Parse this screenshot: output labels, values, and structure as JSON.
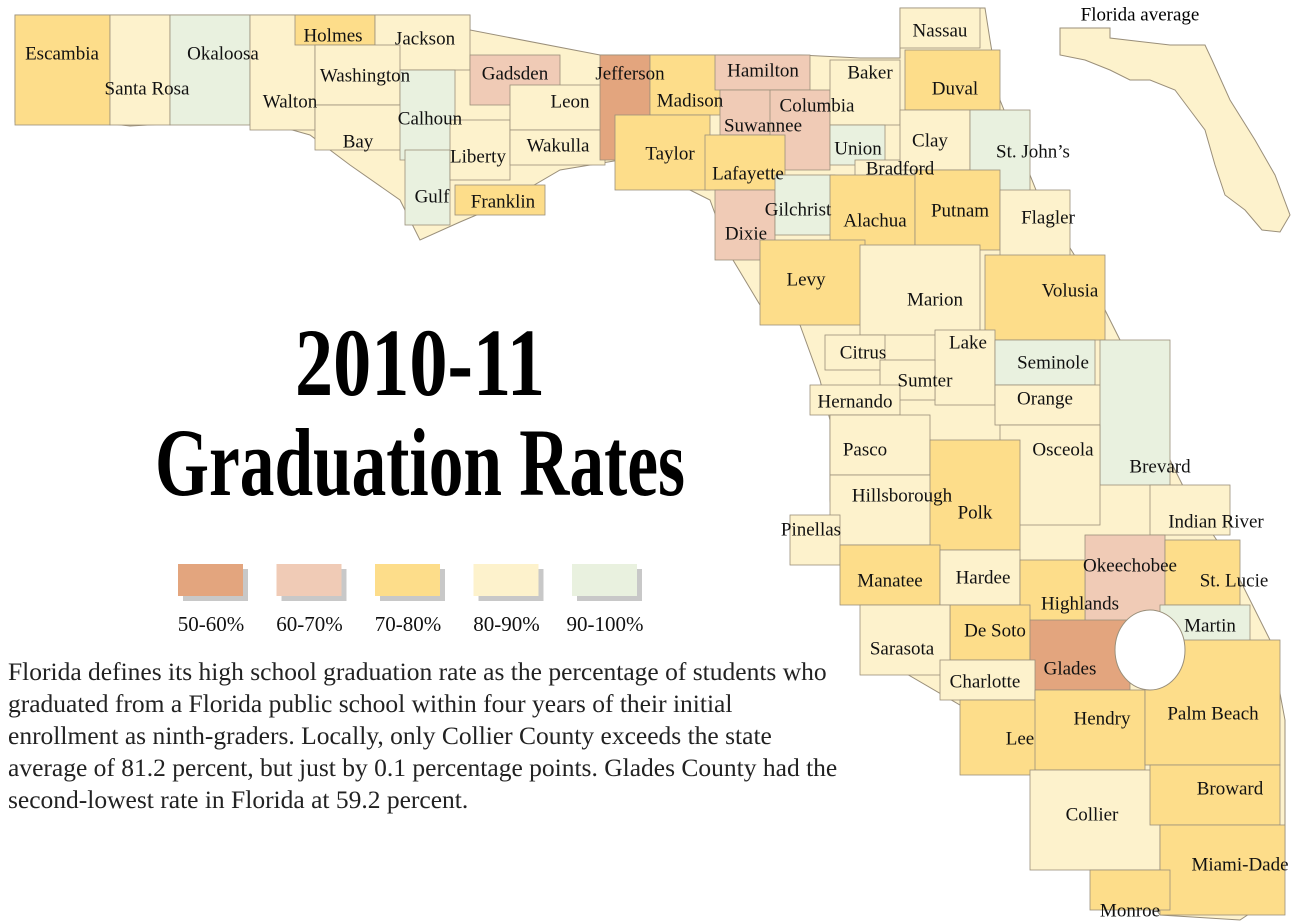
{
  "title": {
    "line1": "2010-11",
    "line2": "Graduation Rates"
  },
  "inset_label": "Florida average",
  "inset_color": "#fdf2cc",
  "legend": [
    {
      "label": "50-60%",
      "color": "#e3a57e"
    },
    {
      "label": "60-70%",
      "color": "#f0cbb6"
    },
    {
      "label": "70-80%",
      "color": "#fddd8a"
    },
    {
      "label": "80-90%",
      "color": "#fdf2cc"
    },
    {
      "label": "90-100%",
      "color": "#e9f1df"
    }
  ],
  "description": "Florida defines its high school graduation rate as the percentage of students who graduated from a Florida public school within four years of their initial enrollment as ninth-graders. Locally, only Collier County exceeds the state average of 81.2 percent, but just by 0.1 percentage points. Glades County had the second-lowest rate in Florida at 59.2 percent.",
  "counties": [
    {
      "name": "Escambia",
      "color": "#fddd8a"
    },
    {
      "name": "Santa Rosa",
      "color": "#fdf2cc"
    },
    {
      "name": "Okaloosa",
      "color": "#e9f1df"
    },
    {
      "name": "Walton",
      "color": "#fdf2cc"
    },
    {
      "name": "Holmes",
      "color": "#fddd8a"
    },
    {
      "name": "Jackson",
      "color": "#fdf2cc"
    },
    {
      "name": "Washington",
      "color": "#fdf2cc"
    },
    {
      "name": "Bay",
      "color": "#fdf2cc"
    },
    {
      "name": "Calhoun",
      "color": "#e9f1df"
    },
    {
      "name": "Gulf",
      "color": "#e9f1df"
    },
    {
      "name": "Liberty",
      "color": "#fdf2cc"
    },
    {
      "name": "Franklin",
      "color": "#fddd8a"
    },
    {
      "name": "Gadsden",
      "color": "#f0cbb6"
    },
    {
      "name": "Leon",
      "color": "#fdf2cc"
    },
    {
      "name": "Wakulla",
      "color": "#fdf2cc"
    },
    {
      "name": "Jefferson",
      "color": "#e3a57e"
    },
    {
      "name": "Madison",
      "color": "#fddd8a"
    },
    {
      "name": "Taylor",
      "color": "#fddd8a"
    },
    {
      "name": "Hamilton",
      "color": "#f0cbb6"
    },
    {
      "name": "Suwannee",
      "color": "#f0cbb6"
    },
    {
      "name": "Columbia",
      "color": "#f0cbb6"
    },
    {
      "name": "Lafayette",
      "color": "#fddd8a"
    },
    {
      "name": "Dixie",
      "color": "#f0cbb6"
    },
    {
      "name": "Gilchrist",
      "color": "#e9f1df"
    },
    {
      "name": "Baker",
      "color": "#fdf2cc"
    },
    {
      "name": "Union",
      "color": "#e9f1df"
    },
    {
      "name": "Bradford",
      "color": "#fdf2cc"
    },
    {
      "name": "Nassau",
      "color": "#fdf2cc"
    },
    {
      "name": "Duval",
      "color": "#fddd8a"
    },
    {
      "name": "Clay",
      "color": "#fdf2cc"
    },
    {
      "name": "St. John’s",
      "color": "#e9f1df"
    },
    {
      "name": "Alachua",
      "color": "#fddd8a"
    },
    {
      "name": "Putnam",
      "color": "#fddd8a"
    },
    {
      "name": "Flagler",
      "color": "#fdf2cc"
    },
    {
      "name": "Levy",
      "color": "#fddd8a"
    },
    {
      "name": "Marion",
      "color": "#fdf2cc"
    },
    {
      "name": "Volusia",
      "color": "#fddd8a"
    },
    {
      "name": "Citrus",
      "color": "#fdf2cc"
    },
    {
      "name": "Lake",
      "color": "#fdf2cc"
    },
    {
      "name": "Seminole",
      "color": "#e9f1df"
    },
    {
      "name": "Sumter",
      "color": "#fdf2cc"
    },
    {
      "name": "Hernando",
      "color": "#fdf2cc"
    },
    {
      "name": "Orange",
      "color": "#fdf2cc"
    },
    {
      "name": "Brevard",
      "color": "#e9f1df"
    },
    {
      "name": "Pasco",
      "color": "#fdf2cc"
    },
    {
      "name": "Osceola",
      "color": "#fdf2cc"
    },
    {
      "name": "Hillsborough",
      "color": "#fdf2cc"
    },
    {
      "name": "Polk",
      "color": "#fddd8a"
    },
    {
      "name": "Pinellas",
      "color": "#fdf2cc"
    },
    {
      "name": "Indian River",
      "color": "#fdf2cc"
    },
    {
      "name": "Manatee",
      "color": "#fddd8a"
    },
    {
      "name": "Hardee",
      "color": "#fdf2cc"
    },
    {
      "name": "Okeechobee",
      "color": "#f0cbb6"
    },
    {
      "name": "Highlands",
      "color": "#fddd8a"
    },
    {
      "name": "St. Lucie",
      "color": "#fddd8a"
    },
    {
      "name": "De Soto",
      "color": "#fddd8a"
    },
    {
      "name": "Martin",
      "color": "#e9f1df"
    },
    {
      "name": "Sarasota",
      "color": "#fdf2cc"
    },
    {
      "name": "Glades",
      "color": "#e3a57e"
    },
    {
      "name": "Charlotte",
      "color": "#fdf2cc"
    },
    {
      "name": "Lee",
      "color": "#fddd8a"
    },
    {
      "name": "Hendry",
      "color": "#fddd8a"
    },
    {
      "name": "Palm Beach",
      "color": "#fddd8a"
    },
    {
      "name": "Collier",
      "color": "#fdf2cc"
    },
    {
      "name": "Broward",
      "color": "#fddd8a"
    },
    {
      "name": "Miami-Dade",
      "color": "#fddd8a"
    },
    {
      "name": "Monroe",
      "color": "#fddd8a"
    }
  ]
}
